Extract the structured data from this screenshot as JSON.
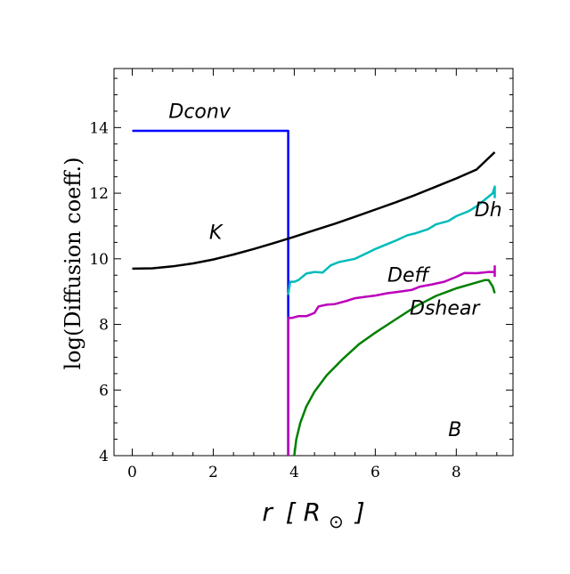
{
  "chart_data": {
    "type": "line",
    "title": "",
    "xlabel_var": "r",
    "xlabel_unit_open": "[",
    "xlabel_unit_sym": "R",
    "xlabel_unit_sub": "⊙",
    "xlabel_unit_close": "]",
    "ylabel": "log(Diffusion coeff.)",
    "xlim": [
      -0.45,
      9.4
    ],
    "ylim": [
      4,
      15.8
    ],
    "xticks": [
      0,
      2,
      4,
      6,
      8
    ],
    "yticks": [
      4,
      6,
      8,
      10,
      12,
      14
    ],
    "xminor_step": 0.5,
    "yminor_step": 0.5,
    "grid": false,
    "legend": "none",
    "series": [
      {
        "name": "Dconv",
        "color": "#0000ff",
        "label_at": [
          0.9,
          14.3
        ],
        "points": [
          [
            0,
            13.9
          ],
          [
            3.85,
            13.9
          ],
          [
            3.85,
            4.0
          ]
        ]
      },
      {
        "name": "K",
        "color": "#000000",
        "label_at": [
          1.9,
          10.6
        ],
        "points": [
          [
            0,
            9.7
          ],
          [
            0.5,
            9.71
          ],
          [
            1.0,
            9.77
          ],
          [
            1.5,
            9.86
          ],
          [
            2.0,
            9.98
          ],
          [
            2.5,
            10.13
          ],
          [
            3.0,
            10.3
          ],
          [
            3.5,
            10.48
          ],
          [
            4.0,
            10.67
          ],
          [
            4.5,
            10.87
          ],
          [
            5.0,
            11.07
          ],
          [
            5.5,
            11.28
          ],
          [
            6.0,
            11.5
          ],
          [
            6.5,
            11.72
          ],
          [
            7.0,
            11.95
          ],
          [
            7.5,
            12.2
          ],
          [
            8.0,
            12.45
          ],
          [
            8.5,
            12.72
          ],
          [
            8.95,
            13.25
          ]
        ]
      },
      {
        "name": "Dh",
        "color": "#00bbbb",
        "label_at": [
          8.45,
          11.3
        ],
        "points": [
          [
            3.85,
            8.9
          ],
          [
            3.9,
            9.3
          ],
          [
            4.0,
            9.3
          ],
          [
            4.1,
            9.35
          ],
          [
            4.3,
            9.55
          ],
          [
            4.5,
            9.6
          ],
          [
            4.7,
            9.58
          ],
          [
            4.9,
            9.8
          ],
          [
            5.1,
            9.9
          ],
          [
            5.3,
            9.95
          ],
          [
            5.5,
            10.0
          ],
          [
            5.8,
            10.18
          ],
          [
            6.0,
            10.3
          ],
          [
            6.3,
            10.45
          ],
          [
            6.5,
            10.55
          ],
          [
            6.8,
            10.72
          ],
          [
            7.0,
            10.78
          ],
          [
            7.3,
            10.9
          ],
          [
            7.5,
            11.05
          ],
          [
            7.8,
            11.15
          ],
          [
            8.0,
            11.3
          ],
          [
            8.3,
            11.45
          ],
          [
            8.5,
            11.6
          ],
          [
            8.7,
            11.8
          ],
          [
            8.9,
            12.0
          ],
          [
            8.95,
            12.2
          ],
          [
            8.95,
            11.85
          ]
        ]
      },
      {
        "name": "Deff",
        "color": "#bb00bb",
        "label_at": [
          6.3,
          9.3
        ],
        "points": [
          [
            3.85,
            4.0
          ],
          [
            3.85,
            8.2
          ],
          [
            3.95,
            8.2
          ],
          [
            4.1,
            8.25
          ],
          [
            4.3,
            8.25
          ],
          [
            4.5,
            8.35
          ],
          [
            4.6,
            8.55
          ],
          [
            4.8,
            8.6
          ],
          [
            5.0,
            8.62
          ],
          [
            5.3,
            8.72
          ],
          [
            5.5,
            8.8
          ],
          [
            5.8,
            8.85
          ],
          [
            6.0,
            8.88
          ],
          [
            6.3,
            8.95
          ],
          [
            6.6,
            9.0
          ],
          [
            6.9,
            9.05
          ],
          [
            7.1,
            9.15
          ],
          [
            7.4,
            9.22
          ],
          [
            7.7,
            9.3
          ],
          [
            8.0,
            9.45
          ],
          [
            8.2,
            9.57
          ],
          [
            8.5,
            9.56
          ],
          [
            8.8,
            9.6
          ],
          [
            8.95,
            9.6
          ],
          [
            8.95,
            9.77
          ],
          [
            8.95,
            9.45
          ]
        ]
      },
      {
        "name": "Dshear",
        "color": "#008000",
        "label_at": [
          6.85,
          8.3
        ],
        "points": [
          [
            4.0,
            4.0
          ],
          [
            4.05,
            4.5
          ],
          [
            4.15,
            5.0
          ],
          [
            4.3,
            5.5
          ],
          [
            4.5,
            5.95
          ],
          [
            4.8,
            6.45
          ],
          [
            5.2,
            6.95
          ],
          [
            5.6,
            7.4
          ],
          [
            6.0,
            7.75
          ],
          [
            6.5,
            8.15
          ],
          [
            7.0,
            8.55
          ],
          [
            7.5,
            8.87
          ],
          [
            8.0,
            9.1
          ],
          [
            8.5,
            9.28
          ],
          [
            8.7,
            9.35
          ],
          [
            8.8,
            9.35
          ],
          [
            8.9,
            9.15
          ],
          [
            8.95,
            8.95
          ]
        ]
      }
    ],
    "annotations": [
      {
        "text": "B",
        "at": [
          7.8,
          4.6
        ]
      }
    ]
  }
}
